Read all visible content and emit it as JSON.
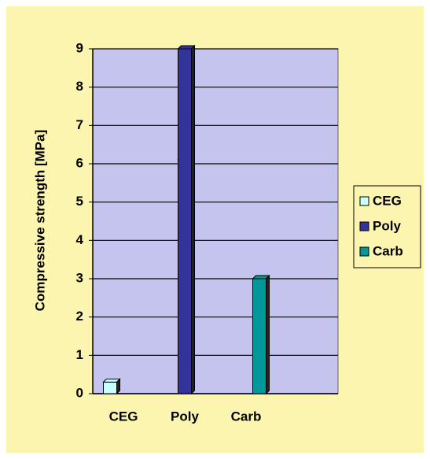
{
  "chart_data": {
    "type": "bar",
    "y_label": "Compressive strength  [MPa]",
    "categories": [
      "CEG",
      "Poly",
      "Carb",
      null
    ],
    "series": [
      {
        "name": "CEG",
        "color": "#ccffff",
        "values": [
          0.3,
          null,
          null,
          null
        ]
      },
      {
        "name": "Poly",
        "color": "#333399",
        "values": [
          null,
          9,
          null,
          null
        ]
      },
      {
        "name": "Carb",
        "color": "#009999",
        "values": [
          null,
          null,
          3,
          null
        ]
      }
    ],
    "ylim": [
      0,
      9
    ],
    "yticks": [
      0,
      1,
      2,
      3,
      4,
      5,
      6,
      7,
      8,
      9
    ],
    "grid": true
  }
}
